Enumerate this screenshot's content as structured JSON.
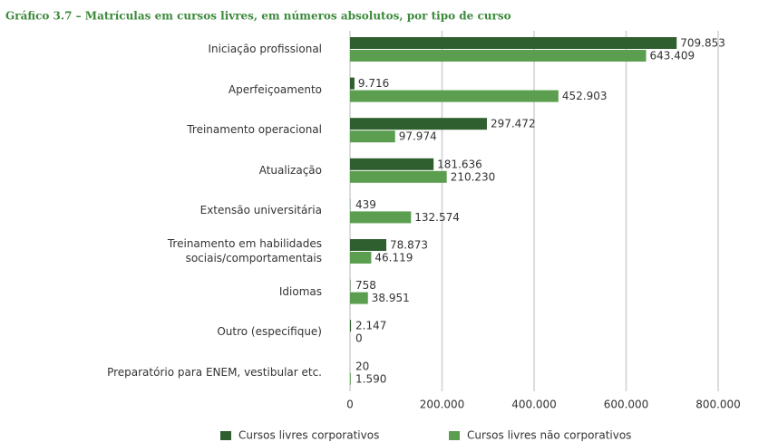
{
  "chart_data": {
    "type": "bar",
    "orientation": "horizontal",
    "title": "Gráfico 3.7 – Matrículas em cursos livres, em números absolutos, por tipo de curso",
    "categories": [
      "Iniciação profissional",
      "Aperfeiçoamento",
      "Treinamento operacional",
      "Atualização",
      "Extensão universitária",
      "Treinamento em habilidades\nsociais/comportamentais",
      "Idiomas",
      "Outro (especifique)",
      "Preparatório para ENEM, vestibular etc."
    ],
    "series": [
      {
        "name": "Cursos livres corporativos",
        "color": "#2f5f2f",
        "values": [
          709853,
          9716,
          297472,
          181636,
          439,
          78873,
          758,
          2147,
          20
        ],
        "value_labels": [
          "709.853",
          "9.716",
          "297.472",
          "181.636",
          "439",
          "78.873",
          "758",
          "2.147",
          "20"
        ]
      },
      {
        "name": "Cursos livres não corporativos",
        "color": "#5b9e50",
        "values": [
          643409,
          452903,
          97974,
          210230,
          132574,
          46119,
          38951,
          0,
          1590
        ],
        "value_labels": [
          "643.409",
          "452.903",
          "97.974",
          "210.230",
          "132.574",
          "46.119",
          "38.951",
          "0",
          "1.590"
        ]
      }
    ],
    "xlim": [
      0,
      800000
    ],
    "xticks": [
      0,
      {
        "value": 200000,
        "label": "200.000"
      },
      {
        "value": 400000,
        "label": "400.000"
      },
      {
        "value": 600000,
        "label": "600.000"
      },
      {
        "value": 800000,
        "label": "800.000"
      }
    ],
    "grid": true,
    "legend": "bottom"
  }
}
